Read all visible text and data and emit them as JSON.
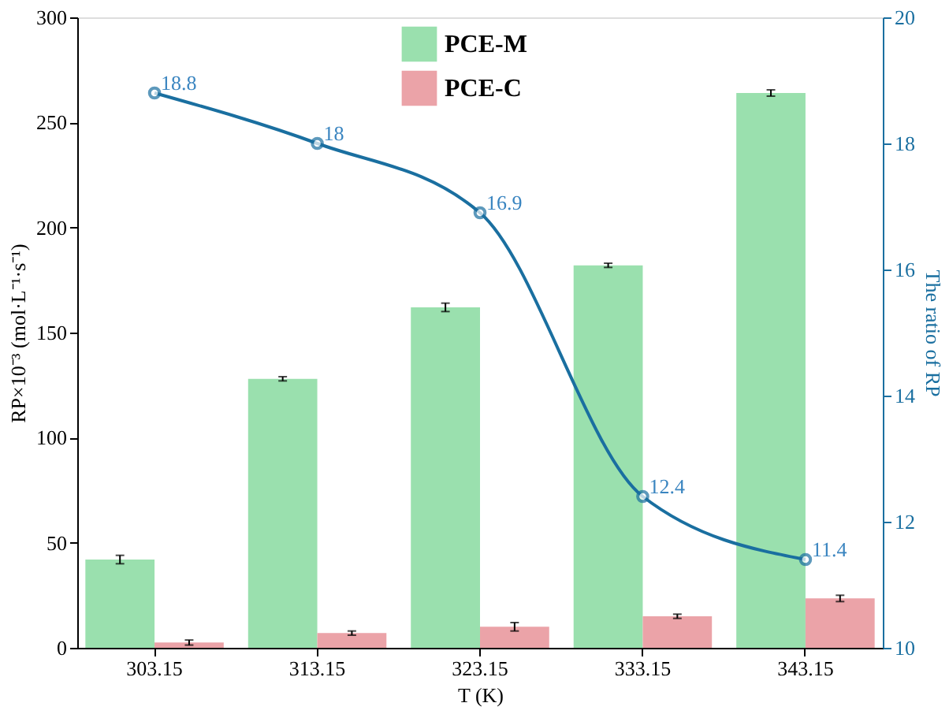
{
  "chart_data": {
    "type": "bar",
    "xlabel": "T (K)",
    "ylabel": "RP×10⁻³ (mol·L⁻¹·s⁻¹)",
    "y2label": "The ratio of RP",
    "categories": [
      "303.15",
      "313.15",
      "323.15",
      "333.15",
      "343.15"
    ],
    "series": [
      {
        "name": "PCE-M",
        "color": "#9ae0ae",
        "values": [
          42,
          128,
          162,
          182,
          264
        ],
        "errors": [
          2,
          1,
          2,
          1,
          1.5
        ]
      },
      {
        "name": "PCE-C",
        "color": "#eba3a8",
        "values": [
          2.5,
          7,
          10,
          15,
          23.5
        ],
        "errors": [
          1.2,
          1,
          2,
          1,
          1.5
        ]
      },
      {
        "type": "line",
        "axis": "y2",
        "color": "#1a6fa0",
        "values": [
          18.8,
          18,
          16.9,
          12.4,
          11.4
        ],
        "data_labels": true,
        "marker": "circle"
      }
    ],
    "ylim": [
      0,
      300
    ],
    "yticks": [
      0,
      50,
      100,
      150,
      200,
      250,
      300
    ],
    "y2lim": [
      10,
      20
    ],
    "y2ticks": [
      10,
      12,
      14,
      16,
      18,
      20
    ],
    "grid": false,
    "legend": "top"
  }
}
